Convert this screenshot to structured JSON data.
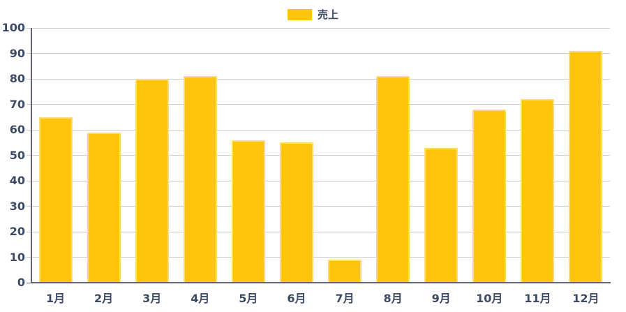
{
  "legend": {
    "items": [
      {
        "label": "売上",
        "color": "#ffc40c"
      }
    ]
  },
  "chart_data": {
    "type": "bar",
    "title": "",
    "categories": [
      "1月",
      "2月",
      "3月",
      "4月",
      "5月",
      "6月",
      "7月",
      "8月",
      "9月",
      "10月",
      "11月",
      "12月"
    ],
    "series": [
      {
        "name": "売上",
        "values": [
          65,
          59,
          80,
          81,
          56,
          55,
          9,
          81,
          53,
          68,
          72,
          91
        ]
      }
    ],
    "xlabel": "",
    "ylabel": "",
    "ylim": [
      0,
      100
    ],
    "yticks": [
      0,
      10,
      20,
      30,
      40,
      50,
      60,
      70,
      80,
      90,
      100
    ],
    "grid": true,
    "legend_position": "top-center",
    "colors": {
      "bar_fill": "#ffc40c",
      "bar_border": "#ffdc73",
      "axis_line": "#5f6570",
      "gridline": "#cdcdcd",
      "tick": "#c6c6c6",
      "label_text": "#3c4a64"
    }
  }
}
